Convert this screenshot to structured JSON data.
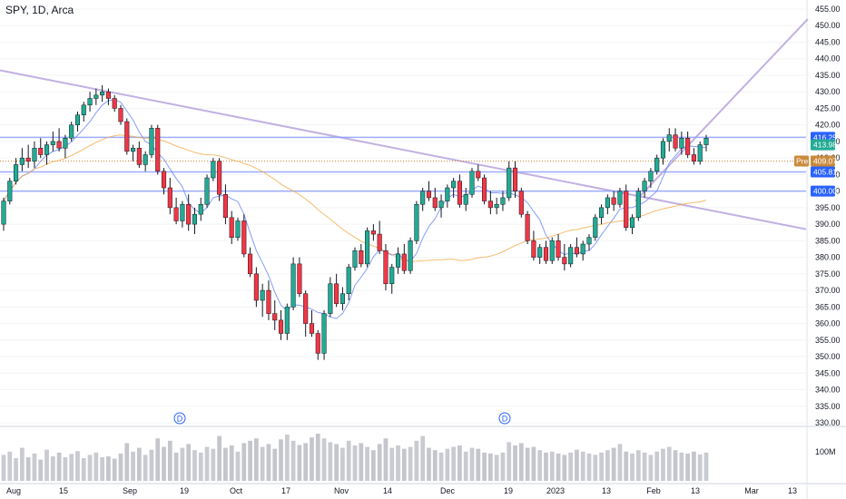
{
  "header": {
    "title": "SPY, 1D, Arca"
  },
  "colors": {
    "up": "#22ab94",
    "down": "#f23645",
    "level_line": "#8c9eff",
    "trend_line": "#b39ddb",
    "ma_fast": "#5b7cf7",
    "ma_slow": "#f0a640",
    "pre_label": "#ca8a3b",
    "last_label": "#2962ff"
  },
  "events": [
    "D",
    "D"
  ],
  "price_labels": {
    "r1": "416.25",
    "last": "413.98",
    "pre_tag": "Pre",
    "pre": "409.07",
    "r2": "405.81",
    "r3": "400.00"
  },
  "volume_label": "100M",
  "chart_data": {
    "type": "candlestick",
    "title": "SPY, 1D, Arca",
    "y_range": [
      330,
      455
    ],
    "y_ticks": [
      "455.00",
      "450.00",
      "445.00",
      "440.00",
      "435.00",
      "430.00",
      "425.00",
      "420.00",
      "415.00",
      "410.00",
      "405.00",
      "400.00",
      "395.00",
      "390.00",
      "385.00",
      "380.00",
      "375.00",
      "370.00",
      "365.00",
      "360.00",
      "355.00",
      "350.00",
      "345.00",
      "340.00",
      "335.00",
      "330.00"
    ],
    "x_tick_labels": [
      "Aug",
      "15",
      "Sep",
      "19",
      "Oct",
      "17",
      "Nov",
      "14",
      "Dec",
      "19",
      "2023",
      "13",
      "Feb",
      "13",
      "Mar",
      "13"
    ],
    "horizontal_levels": [
      416.25,
      405.81,
      400.0
    ],
    "last_price": 413.98,
    "premarket_price": 409.07,
    "candles_ohlc": [
      [
        390,
        398,
        388,
        397
      ],
      [
        397,
        404,
        396,
        403
      ],
      [
        403,
        410,
        402,
        408
      ],
      [
        408,
        413,
        406,
        410
      ],
      [
        410,
        414,
        407,
        409
      ],
      [
        409,
        415,
        407,
        413
      ],
      [
        413,
        416,
        410,
        411
      ],
      [
        411,
        415,
        408,
        414
      ],
      [
        414,
        418,
        412,
        415
      ],
      [
        415,
        419,
        412,
        413
      ],
      [
        413,
        417,
        410,
        416
      ],
      [
        416,
        421,
        415,
        420
      ],
      [
        420,
        424,
        418,
        423
      ],
      [
        423,
        427,
        421,
        426
      ],
      [
        426,
        430,
        424,
        428
      ],
      [
        428,
        431,
        426,
        429
      ],
      [
        429,
        432,
        427,
        430
      ],
      [
        430,
        431,
        426,
        428
      ],
      [
        428,
        429,
        424,
        425
      ],
      [
        425,
        426,
        420,
        421
      ],
      [
        421,
        422,
        411,
        412
      ],
      [
        412,
        414,
        409,
        413
      ],
      [
        413,
        415,
        407,
        408
      ],
      [
        408,
        412,
        406,
        411
      ],
      [
        411,
        420,
        410,
        419
      ],
      [
        419,
        420,
        405,
        406
      ],
      [
        406,
        407,
        399,
        401
      ],
      [
        401,
        404,
        393,
        395
      ],
      [
        395,
        398,
        390,
        391
      ],
      [
        391,
        397,
        389,
        396
      ],
      [
        396,
        399,
        388,
        390
      ],
      [
        390,
        395,
        387,
        393
      ],
      [
        393,
        398,
        391,
        396
      ],
      [
        396,
        405,
        395,
        404
      ],
      [
        404,
        410,
        403,
        409
      ],
      [
        409,
        410,
        397,
        399
      ],
      [
        399,
        402,
        390,
        392
      ],
      [
        392,
        394,
        384,
        386
      ],
      [
        386,
        392,
        385,
        391
      ],
      [
        391,
        393,
        380,
        381
      ],
      [
        381,
        383,
        374,
        375
      ],
      [
        375,
        377,
        365,
        367
      ],
      [
        367,
        372,
        362,
        370
      ],
      [
        370,
        373,
        361,
        363
      ],
      [
        363,
        367,
        358,
        361
      ],
      [
        361,
        364,
        355,
        357
      ],
      [
        357,
        366,
        355,
        365
      ],
      [
        365,
        380,
        364,
        378
      ],
      [
        378,
        380,
        368,
        369
      ],
      [
        369,
        370,
        356,
        360
      ],
      [
        360,
        364,
        356,
        357
      ],
      [
        357,
        358,
        349,
        351
      ],
      [
        351,
        364,
        349,
        363
      ],
      [
        363,
        374,
        362,
        372
      ],
      [
        372,
        375,
        365,
        366
      ],
      [
        366,
        371,
        364,
        369
      ],
      [
        369,
        378,
        367,
        377
      ],
      [
        377,
        383,
        376,
        382
      ],
      [
        382,
        384,
        377,
        378
      ],
      [
        378,
        389,
        377,
        388
      ],
      [
        388,
        390,
        385,
        387
      ],
      [
        387,
        391,
        381,
        382
      ],
      [
        382,
        384,
        370,
        372
      ],
      [
        372,
        378,
        369,
        377
      ],
      [
        377,
        383,
        375,
        381
      ],
      [
        381,
        384,
        375,
        376
      ],
      [
        376,
        386,
        375,
        385
      ],
      [
        385,
        397,
        384,
        396
      ],
      [
        396,
        401,
        394,
        400
      ],
      [
        400,
        403,
        397,
        398
      ],
      [
        398,
        401,
        394,
        395
      ],
      [
        395,
        399,
        392,
        397
      ],
      [
        397,
        402,
        395,
        401
      ],
      [
        401,
        404,
        398,
        403
      ],
      [
        403,
        405,
        395,
        396
      ],
      [
        396,
        401,
        394,
        399
      ],
      [
        399,
        407,
        398,
        406
      ],
      [
        406,
        408,
        403,
        404
      ],
      [
        404,
        405,
        396,
        397
      ],
      [
        397,
        400,
        393,
        395
      ],
      [
        395,
        398,
        393,
        396
      ],
      [
        396,
        400,
        394,
        398
      ],
      [
        398,
        409,
        397,
        407
      ],
      [
        407,
        409,
        398,
        400
      ],
      [
        400,
        401,
        392,
        393
      ],
      [
        393,
        394,
        384,
        385
      ],
      [
        385,
        388,
        379,
        380
      ],
      [
        380,
        384,
        378,
        383
      ],
      [
        383,
        385,
        378,
        379
      ],
      [
        379,
        386,
        378,
        385
      ],
      [
        385,
        387,
        379,
        380
      ],
      [
        380,
        384,
        376,
        378
      ],
      [
        378,
        384,
        377,
        383
      ],
      [
        383,
        386,
        380,
        381
      ],
      [
        381,
        385,
        379,
        384
      ],
      [
        384,
        387,
        382,
        386
      ],
      [
        386,
        393,
        385,
        392
      ],
      [
        392,
        396,
        390,
        395
      ],
      [
        395,
        399,
        393,
        398
      ],
      [
        398,
        400,
        394,
        396
      ],
      [
        396,
        401,
        395,
        400
      ],
      [
        400,
        402,
        388,
        389
      ],
      [
        389,
        393,
        387,
        392
      ],
      [
        392,
        401,
        391,
        400
      ],
      [
        400,
        404,
        398,
        403
      ],
      [
        403,
        407,
        401,
        406
      ],
      [
        406,
        411,
        405,
        410
      ],
      [
        410,
        416,
        408,
        415
      ],
      [
        415,
        419,
        412,
        417
      ],
      [
        417,
        419,
        412,
        413
      ],
      [
        413,
        418,
        411,
        416
      ],
      [
        416,
        418,
        410,
        411
      ],
      [
        411,
        413,
        408,
        409
      ],
      [
        409,
        415,
        408,
        414
      ],
      [
        414,
        417,
        412,
        416
      ]
    ],
    "volume_relative": [
      0.55,
      0.62,
      0.48,
      0.7,
      0.5,
      0.58,
      0.45,
      0.66,
      0.52,
      0.6,
      0.5,
      0.57,
      0.63,
      0.48,
      0.55,
      0.6,
      0.5,
      0.52,
      0.47,
      0.58,
      0.8,
      0.62,
      0.7,
      0.55,
      0.66,
      0.9,
      0.72,
      0.85,
      0.6,
      0.7,
      0.78,
      0.65,
      0.6,
      0.72,
      0.68,
      0.95,
      0.7,
      0.75,
      0.62,
      0.8,
      0.85,
      0.9,
      0.72,
      0.78,
      0.68,
      0.88,
      0.98,
      0.85,
      0.76,
      0.8,
      0.92,
      1.0,
      0.9,
      0.82,
      0.78,
      0.7,
      0.85,
      0.75,
      0.8,
      0.72,
      0.65,
      0.78,
      0.9,
      0.7,
      0.75,
      0.68,
      0.72,
      0.85,
      0.95,
      0.7,
      0.65,
      0.6,
      0.68,
      0.72,
      0.75,
      0.62,
      0.7,
      0.68,
      0.6,
      0.58,
      0.55,
      0.6,
      0.82,
      0.75,
      0.8,
      0.7,
      0.72,
      0.65,
      0.6,
      0.62,
      0.58,
      0.55,
      0.6,
      0.66,
      0.62,
      0.58,
      0.55,
      0.6,
      0.65,
      0.7,
      0.78,
      0.62,
      0.58,
      0.65,
      0.6,
      0.55,
      0.62,
      0.68,
      0.72,
      0.65,
      0.6,
      0.58,
      0.62,
      0.56,
      0.6
    ]
  }
}
